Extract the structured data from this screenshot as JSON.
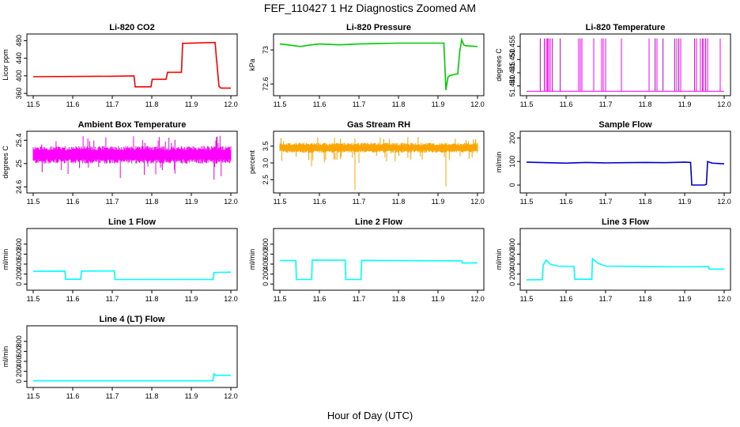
{
  "figure": {
    "title": "FEF_110427  1 Hz Diagnostics Zoomed AM",
    "xlabel": "Hour of Day (UTC)"
  },
  "chart_data": [
    {
      "type": "line",
      "title": "Li-820 CO2",
      "ylabel": "Licor ppm",
      "color": "#ff0000",
      "xlim": [
        11.5,
        12.0
      ],
      "ylim": [
        362,
        488
      ],
      "yticks": [
        360,
        400,
        440,
        480
      ],
      "xticks": [
        11.5,
        11.6,
        11.7,
        11.8,
        11.9,
        12.0
      ],
      "x": [
        11.5,
        11.7,
        11.755,
        11.758,
        11.798,
        11.801,
        11.836,
        11.84,
        11.875,
        11.878,
        11.96,
        11.97,
        11.975,
        12.0
      ],
      "y": [
        398,
        399,
        400,
        375,
        375,
        392,
        392,
        408,
        408,
        474,
        476,
        376,
        372,
        372
      ]
    },
    {
      "type": "line",
      "title": "Li-820 Pressure",
      "ylabel": "kPa",
      "color": "#00cc00",
      "xlim": [
        11.5,
        12.0
      ],
      "ylim": [
        72.5,
        73.15
      ],
      "yticks": [
        72.6,
        73.0
      ],
      "xticks": [
        11.5,
        11.6,
        11.7,
        11.8,
        11.9,
        12.0
      ],
      "x": [
        11.5,
        11.52,
        11.55,
        11.58,
        11.6,
        11.65,
        11.7,
        11.75,
        11.8,
        11.85,
        11.9,
        11.915,
        11.92,
        11.925,
        11.93,
        11.95,
        11.955,
        11.96,
        11.965,
        11.97,
        12.0
      ],
      "y": [
        73.07,
        73.06,
        73.04,
        73.06,
        73.07,
        73.06,
        73.07,
        73.075,
        73.08,
        73.08,
        73.08,
        73.08,
        72.53,
        72.68,
        72.7,
        72.72,
        72.98,
        73.12,
        73.06,
        73.05,
        73.04
      ]
    },
    {
      "type": "line",
      "title": "Li-820 Temperature",
      "ylabel": "degrees C",
      "color": "#ff00ff",
      "xlim": [
        11.5,
        12.0
      ],
      "ylim": [
        51.4375,
        51.4585
      ],
      "yticks": [
        51.44,
        51.445,
        51.45,
        51.455
      ],
      "xticks": [
        11.5,
        11.6,
        11.7,
        11.8,
        11.9,
        12.0
      ],
      "baseline": 51.438,
      "spike_top": 51.458,
      "spikes": [
        11.535,
        11.545,
        11.55,
        11.553,
        11.556,
        11.56,
        11.565,
        11.585,
        11.632,
        11.636,
        11.64,
        11.67,
        11.69,
        11.694,
        11.7,
        11.74,
        11.81,
        11.825,
        11.83,
        11.845,
        11.875,
        11.88,
        11.885,
        11.89,
        11.925,
        11.93,
        11.94,
        11.945,
        11.948,
        11.953,
        11.958,
        11.99
      ]
    },
    {
      "type": "line",
      "title": "Ambient Box Temperature",
      "ylabel": "degrees C",
      "color": "#ff00ff",
      "xlim": [
        11.5,
        12.0
      ],
      "ylim": [
        24.55,
        25.5
      ],
      "yticks": [
        24.6,
        25.0,
        25.4
      ],
      "xticks": [
        11.5,
        11.6,
        11.7,
        11.8,
        11.9,
        12.0
      ],
      "band": [
        25.0,
        25.3
      ],
      "noise": true
    },
    {
      "type": "line",
      "title": "Gas Stream RH",
      "ylabel": "percent",
      "color": "#ffa500",
      "xlim": [
        11.5,
        12.0
      ],
      "ylim": [
        2.2,
        3.85
      ],
      "yticks": [
        2.5,
        3.0,
        3.5
      ],
      "xticks": [
        11.5,
        11.6,
        11.7,
        11.8,
        11.9,
        12.0
      ],
      "band": [
        3.3,
        3.6
      ],
      "noise": true,
      "dips": [
        [
          11.69,
          2.2
        ],
        [
          11.58,
          2.9
        ],
        [
          11.64,
          3.1
        ],
        [
          11.92,
          2.3
        ],
        [
          11.7,
          3.0
        ],
        [
          11.77,
          3.05
        ]
      ]
    },
    {
      "type": "line",
      "title": "Sample Flow",
      "ylabel": "ml/min",
      "color": "#0000cc",
      "xlim": [
        11.5,
        12.0
      ],
      "ylim": [
        -20,
        215
      ],
      "yticks": [
        0,
        100,
        200
      ],
      "xticks": [
        11.5,
        11.6,
        11.7,
        11.8,
        11.9,
        12.0
      ],
      "x": [
        11.5,
        11.55,
        11.6,
        11.65,
        11.7,
        11.75,
        11.8,
        11.85,
        11.9,
        11.915,
        11.918,
        11.95,
        11.955,
        11.958,
        11.97,
        12.0
      ],
      "y": [
        97,
        95,
        93,
        96,
        94,
        95,
        96,
        95,
        97,
        96,
        0,
        0,
        3,
        100,
        93,
        90
      ]
    },
    {
      "type": "line",
      "title": "Line 1 Flow",
      "ylabel": "ml/min",
      "color": "#00ffff",
      "xlim": [
        11.5,
        12.0
      ],
      "ylim": [
        -60,
        1050
      ],
      "yticks": [
        0,
        200,
        400,
        600,
        800
      ],
      "xticks": [
        11.5,
        11.6,
        11.7,
        11.8,
        11.9,
        12.0
      ],
      "x": [
        11.5,
        11.58,
        11.582,
        11.62,
        11.622,
        11.705,
        11.707,
        11.955,
        11.957,
        12.0
      ],
      "y": [
        255,
        258,
        95,
        95,
        260,
        262,
        90,
        90,
        232,
        238
      ]
    },
    {
      "type": "line",
      "title": "Line 2 Flow",
      "ylabel": "ml/min",
      "color": "#00ffff",
      "xlim": [
        11.5,
        12.0
      ],
      "ylim": [
        -60,
        1050
      ],
      "yticks": [
        0,
        200,
        400,
        600,
        800
      ],
      "xticks": [
        11.5,
        11.6,
        11.7,
        11.8,
        11.9,
        12.0
      ],
      "x": [
        11.5,
        11.54,
        11.542,
        11.58,
        11.582,
        11.665,
        11.667,
        11.705,
        11.707,
        11.96,
        11.962,
        12.0
      ],
      "y": [
        470,
        472,
        90,
        90,
        480,
        478,
        90,
        90,
        475,
        465,
        420,
        425
      ]
    },
    {
      "type": "line",
      "title": "Line 3 Flow",
      "ylabel": "ml/min",
      "color": "#00ffff",
      "xlim": [
        11.5,
        12.0
      ],
      "ylim": [
        -60,
        1050
      ],
      "yticks": [
        0,
        200,
        400,
        600,
        800
      ],
      "xticks": [
        11.5,
        11.6,
        11.7,
        11.8,
        11.9,
        12.0
      ],
      "x": [
        11.5,
        11.54,
        11.542,
        11.55,
        11.56,
        11.58,
        11.62,
        11.622,
        11.665,
        11.667,
        11.68,
        11.7,
        11.8,
        11.9,
        11.96,
        11.962,
        12.0
      ],
      "y": [
        85,
        88,
        380,
        480,
        400,
        360,
        350,
        95,
        95,
        510,
        420,
        360,
        350,
        345,
        350,
        300,
        300
      ]
    },
    {
      "type": "line",
      "title": "Line 4 (LT) Flow",
      "ylabel": "ml/min",
      "color": "#00ffff",
      "xlim": [
        11.5,
        12.0
      ],
      "ylim": [
        -60,
        1050
      ],
      "yticks": [
        0,
        200,
        400,
        600,
        800
      ],
      "xticks": [
        11.5,
        11.6,
        11.7,
        11.8,
        11.9,
        12.0
      ],
      "x": [
        11.5,
        11.95,
        11.955,
        11.957,
        11.962,
        12.0
      ],
      "y": [
        10,
        10,
        10,
        150,
        120,
        120
      ]
    }
  ]
}
